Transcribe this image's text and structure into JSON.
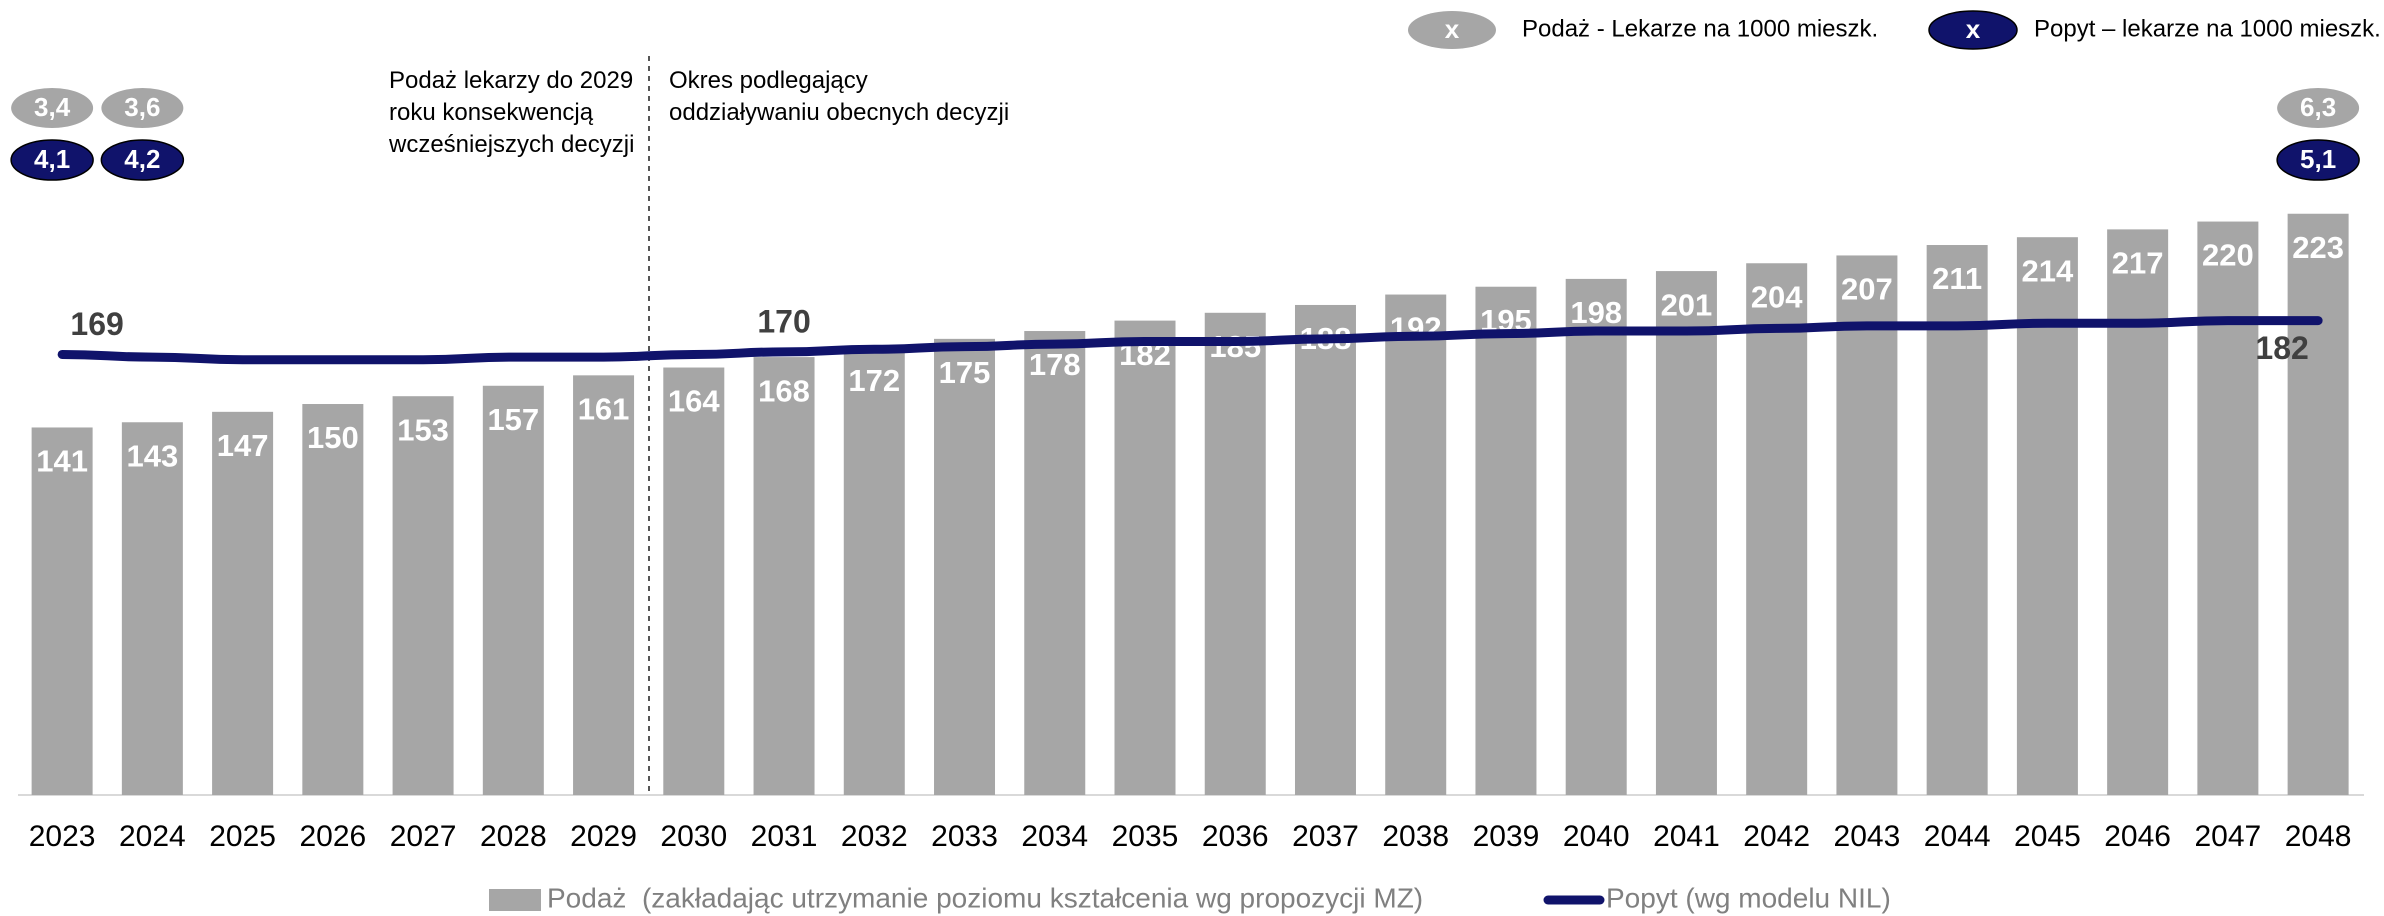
{
  "chart_data": {
    "type": "bar_line",
    "categories": [
      "2023",
      "2024",
      "2025",
      "2026",
      "2027",
      "2028",
      "2029",
      "2030",
      "2031",
      "2032",
      "2033",
      "2034",
      "2035",
      "2036",
      "2037",
      "2038",
      "2039",
      "2040",
      "2041",
      "2042",
      "2043",
      "2044",
      "2045",
      "2046",
      "2047",
      "2048"
    ],
    "series": [
      {
        "name": "Podaż  (zakładając utrzymanie poziomu kształcenia wg propozycji MZ)",
        "type": "bar",
        "color": "#a6a6a6",
        "values": [
          141,
          143,
          147,
          150,
          153,
          157,
          161,
          164,
          168,
          172,
          175,
          178,
          182,
          185,
          188,
          192,
          195,
          198,
          201,
          204,
          207,
          211,
          214,
          217,
          220,
          223
        ]
      },
      {
        "name": "Popyt (wg modelu NIL)",
        "type": "line",
        "color": "#10136b",
        "values": [
          169,
          168,
          167,
          167,
          167,
          168,
          168,
          169,
          170,
          171,
          172,
          173,
          174,
          174,
          175,
          176,
          177,
          178,
          178,
          179,
          180,
          180,
          181,
          181,
          182,
          182
        ],
        "value_labels": [
          "169",
          null,
          null,
          null,
          null,
          null,
          null,
          null,
          "170",
          null,
          null,
          null,
          null,
          null,
          null,
          null,
          null,
          null,
          null,
          null,
          null,
          null,
          null,
          null,
          null,
          "182"
        ]
      }
    ],
    "ylim": [
      0,
      305
    ],
    "annotations": [
      "Podaż lekarzy do 2029 roku konsekwencją wcześniejszych decyzji",
      "Okres podlegający oddziaływaniu obecnych decyzji"
    ],
    "ratio_legend": [
      {
        "marker": "x",
        "text": "Podaż - Lekarze na 1000 mieszk.",
        "color": "#a6a6a6"
      },
      {
        "marker": "x",
        "text": "Popyt – lekarze na 1000 mieszk.",
        "color": "#10136b"
      }
    ],
    "ratios": [
      {
        "category": "2023",
        "supply": 3.4,
        "supply_label": "3,4",
        "demand": 4.1,
        "demand_label": "4,1"
      },
      {
        "category": "2024",
        "supply": 3.6,
        "supply_label": "3,6",
        "demand": 4.2,
        "demand_label": "4,2"
      },
      {
        "category": "2048",
        "supply": 6.3,
        "supply_label": "6,3",
        "demand": 5.1,
        "demand_label": "5,1"
      }
    ]
  }
}
